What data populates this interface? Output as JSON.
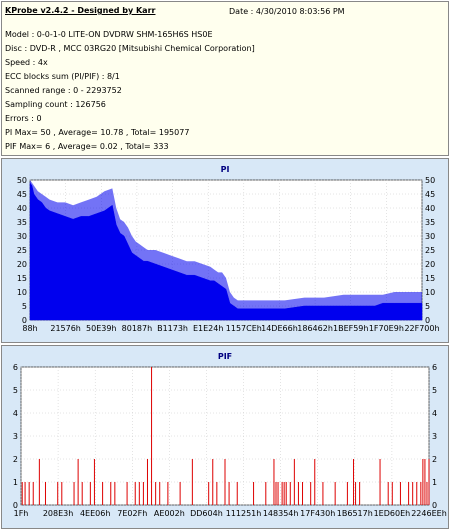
{
  "header": {
    "title": "KProbe v2.4.2 - Designed by Karr",
    "date": "Date : 4/30/2010 8:03:56 PM"
  },
  "info": [
    "Model : 0-0-1-0 LITE-ON DVDRW SHM-165H6S HS0E",
    "Disc : DVD-R , MCC 03RG20   [Mitsubishi Chemical Corporation]",
    "Speed : 4x",
    "ECC blocks sum (PI/PIF) : 8/1",
    "Scanned range : 0 - 2293752",
    "Sampling count : 126756",
    "Errors : 0",
    "PI Max= 50 , Average= 10.78 , Total= 195077",
    "PIF Max= 6 , Average= 0.02 , Total= 333"
  ],
  "colors": {
    "pi": "#0000ee",
    "pif": "#dd0000",
    "panel_bg": "#d8e8f7",
    "info_bg": "#ffffee",
    "title": "#000080"
  },
  "chart_data": [
    {
      "type": "area",
      "title": "PI",
      "ylim": [
        0,
        50
      ],
      "yticks": [
        0,
        5,
        10,
        15,
        20,
        25,
        30,
        35,
        40,
        45,
        50
      ],
      "xticks": [
        "88h",
        "21576h",
        "50E39h",
        "80187h",
        "B1173h",
        "E1E24h",
        "1157CEh",
        "14DE66h",
        "186462h",
        "1BEF59h",
        "1F70E9h",
        "22F700h"
      ],
      "grid": true,
      "series": [
        {
          "x": [
            0.0,
            0.005,
            0.01,
            0.02,
            0.03,
            0.04,
            0.05,
            0.07,
            0.09,
            0.11,
            0.13,
            0.15,
            0.17,
            0.19,
            0.21,
            0.22,
            0.23,
            0.24,
            0.25,
            0.26,
            0.27,
            0.28,
            0.29,
            0.3,
            0.32,
            0.34,
            0.36,
            0.38,
            0.4,
            0.42,
            0.44,
            0.46,
            0.47,
            0.48,
            0.49,
            0.5,
            0.51,
            0.52,
            0.53,
            0.55,
            0.6,
            0.65,
            0.7,
            0.75,
            0.8,
            0.85,
            0.88,
            0.9,
            0.93,
            0.96,
            1.0
          ],
          "values": [
            49,
            48,
            45,
            43,
            42,
            40,
            39,
            38,
            37,
            36,
            37,
            37,
            38,
            39,
            41,
            34,
            31,
            30,
            27,
            24,
            23,
            22,
            21,
            21,
            20,
            19,
            18,
            17,
            16,
            16,
            15,
            14,
            14,
            13,
            12,
            11,
            6,
            5,
            4,
            4,
            4,
            4,
            5,
            5,
            5,
            5,
            5,
            6,
            6,
            6,
            6
          ],
          "peaks": [
            50,
            49,
            48,
            46,
            45,
            44,
            43,
            42,
            42,
            41,
            42,
            43,
            44,
            46,
            47,
            40,
            36,
            35,
            33,
            30,
            28,
            27,
            26,
            25,
            25,
            24,
            23,
            22,
            21,
            21,
            20,
            19,
            18,
            17,
            17,
            15,
            10,
            8,
            7,
            7,
            7,
            7,
            8,
            8,
            9,
            9,
            9,
            9,
            10,
            10,
            10
          ]
        }
      ]
    },
    {
      "type": "bar",
      "title": "PIF",
      "ylim": [
        0,
        6
      ],
      "yticks": [
        0,
        1,
        2,
        3,
        4,
        5,
        6
      ],
      "xticks": [
        "1Fh",
        "208E3h",
        "4EE06h",
        "7E02Fh",
        "AE002h",
        "DD604h",
        "111251h",
        "148354h",
        "17F430h",
        "1B6517h",
        "1ED60Eh",
        "2246EEh"
      ],
      "grid": true,
      "series": [
        {
          "x": [
            0.003,
            0.01,
            0.02,
            0.03,
            0.045,
            0.06,
            0.09,
            0.1,
            0.13,
            0.14,
            0.15,
            0.17,
            0.18,
            0.2,
            0.22,
            0.23,
            0.26,
            0.28,
            0.29,
            0.3,
            0.31,
            0.32,
            0.33,
            0.34,
            0.36,
            0.39,
            0.42,
            0.46,
            0.47,
            0.48,
            0.5,
            0.5,
            0.51,
            0.53,
            0.57,
            0.62,
            0.6,
            0.625,
            0.63,
            0.64,
            0.645,
            0.65,
            0.66,
            0.67,
            0.68,
            0.69,
            0.71,
            0.72,
            0.74,
            0.77,
            0.8,
            0.815,
            0.82,
            0.83,
            0.88,
            0.9,
            0.91,
            0.93,
            0.95,
            0.96,
            0.97,
            0.98,
            0.985,
            0.99,
            0.995,
            1.0
          ],
          "values": [
            1,
            1,
            1,
            1,
            2,
            1,
            1,
            1,
            1,
            2,
            1,
            1,
            2,
            1,
            1,
            1,
            1,
            1,
            1,
            1,
            2,
            6,
            1,
            1,
            1,
            1,
            2,
            1,
            2,
            1,
            2,
            1,
            1,
            1,
            1,
            2,
            1,
            1,
            1,
            1,
            1,
            1,
            1,
            2,
            1,
            1,
            1,
            2,
            1,
            1,
            1,
            2,
            1,
            1,
            2,
            1,
            1,
            1,
            1,
            1,
            1,
            1,
            2,
            2,
            1,
            2
          ]
        }
      ]
    }
  ]
}
